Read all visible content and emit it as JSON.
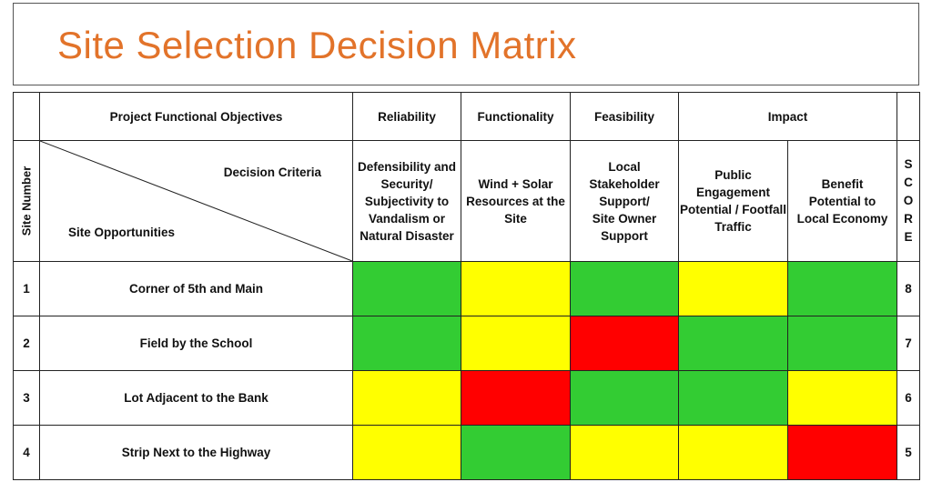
{
  "title": "Site Selection Decision Matrix",
  "header": {
    "objectives_label": "Project Functional Objectives",
    "objectives": [
      "Reliability",
      "Functionality",
      "Feasibility",
      "Impact"
    ],
    "decision_criteria_label": "Decision Criteria",
    "site_opportunities_label": "Site Opportunities",
    "site_number_label": "Site Number",
    "score_letters": [
      "S",
      "C",
      "O",
      "R",
      "E"
    ]
  },
  "criteria": [
    "Defensibility and\nSecurity/\nSubjectivity to\nVandalism or\nNatural Disaster",
    "Wind + Solar\nResources at the\nSite",
    "Local\nStakeholder\nSupport/\nSite Owner\nSupport",
    "Public\nEngagement\nPotential / Footfall\nTraffic",
    "Benefit\nPotential to\nLocal Economy"
  ],
  "colors": {
    "green": "#33cc33",
    "yellow": "#ffff00",
    "red": "#ff0000",
    "title": "#e2732a"
  },
  "sites": [
    {
      "number": "1",
      "name": "Corner of 5th and Main",
      "ratings": [
        "green",
        "yellow",
        "green",
        "yellow",
        "green"
      ],
      "score": "8"
    },
    {
      "number": "2",
      "name": "Field by the School",
      "ratings": [
        "green",
        "yellow",
        "red",
        "green",
        "green"
      ],
      "score": "7"
    },
    {
      "number": "3",
      "name": "Lot Adjacent to the Bank",
      "ratings": [
        "yellow",
        "red",
        "green",
        "green",
        "yellow"
      ],
      "score": "6"
    },
    {
      "number": "4",
      "name": "Strip Next to the Highway",
      "ratings": [
        "yellow",
        "green",
        "yellow",
        "yellow",
        "red"
      ],
      "score": "5"
    }
  ]
}
